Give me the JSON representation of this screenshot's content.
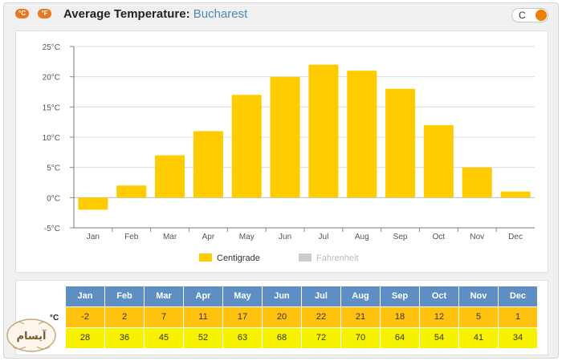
{
  "header": {
    "unit_c_label": "°C",
    "unit_f_label": "°F",
    "title_prefix": "Average Temperature:",
    "city": "Bucharest",
    "toggle_label": "C",
    "accent": "#ef7f00"
  },
  "chart_data": {
    "type": "bar",
    "title": "",
    "xlabel": "",
    "ylabel": "",
    "categories": [
      "Jan",
      "Feb",
      "Mar",
      "Apr",
      "May",
      "Jun",
      "Jul",
      "Aug",
      "Sep",
      "Oct",
      "Nov",
      "Dec"
    ],
    "series": [
      {
        "name": "Centigrade",
        "values": [
          -2,
          2,
          7,
          11,
          17,
          20,
          22,
          21,
          18,
          12,
          5,
          1
        ],
        "color": "#ffcc00",
        "visible": true
      },
      {
        "name": "Fahrenheit",
        "values": [
          28,
          36,
          45,
          52,
          63,
          68,
          72,
          70,
          64,
          54,
          41,
          34
        ],
        "color": "#cccccc",
        "visible": false
      }
    ],
    "ylim": [
      -5,
      25
    ],
    "yticks": [
      -5,
      0,
      5,
      10,
      15,
      20,
      25
    ],
    "ytick_labels": [
      "-5°C",
      "0°C",
      "5°C",
      "10°C",
      "15°C",
      "20°C",
      "25°C"
    ],
    "grid": true,
    "legend_position": "bottom-center"
  },
  "table": {
    "row_label_c": "°C",
    "months": [
      "Jan",
      "Feb",
      "Mar",
      "Apr",
      "May",
      "Jun",
      "Jul",
      "Aug",
      "Sep",
      "Oct",
      "Nov",
      "Dec"
    ],
    "celsius": [
      "-2",
      "2",
      "7",
      "11",
      "17",
      "20",
      "22",
      "21",
      "18",
      "12",
      "5",
      "1"
    ],
    "fahrenheit": [
      "28",
      "36",
      "45",
      "52",
      "63",
      "68",
      "72",
      "70",
      "64",
      "54",
      "41",
      "34"
    ]
  },
  "logo": {
    "text": "آیسام"
  }
}
